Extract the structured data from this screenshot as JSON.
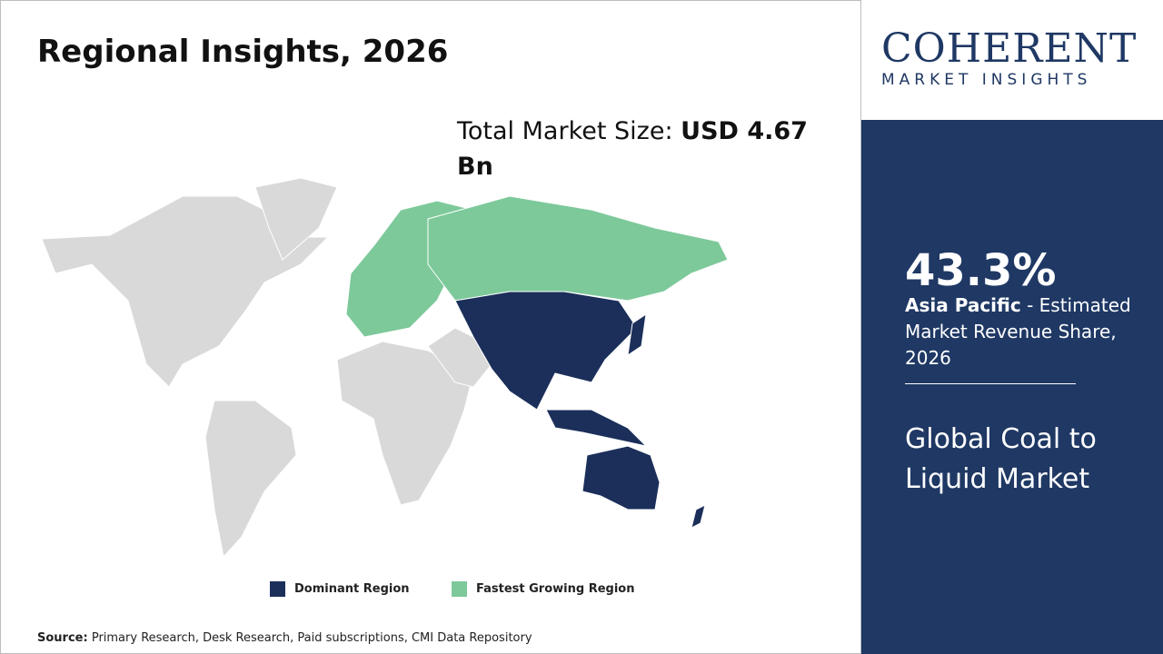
{
  "header": {
    "title": "Regional Insights, 2026"
  },
  "market_size": {
    "label": "Total Market Size:",
    "value": "USD 4.67 Bn"
  },
  "legend": {
    "dominant": "Dominant Region",
    "fastest": "Fastest Growing Region"
  },
  "source": {
    "label": "Source:",
    "text": "Primary Research, Desk Research, Paid subscriptions, CMI Data Repository"
  },
  "logo": {
    "name": "COHERENT",
    "tagline": "MARKET INSIGHTS"
  },
  "highlight": {
    "share": "43.3%",
    "region": "Asia Pacific",
    "description": "- Estimated Market Revenue Share, 2026"
  },
  "market_name": "Global Coal to Liquid Market"
}
